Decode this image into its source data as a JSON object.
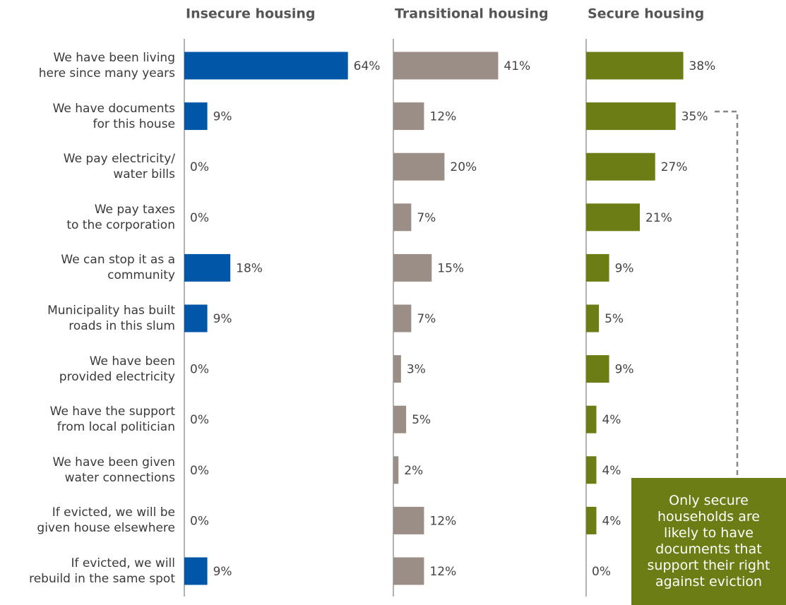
{
  "chart_data": {
    "type": "bar",
    "orientation": "horizontal",
    "categories": [
      "We have been living\nhere since many years",
      "We have documents\nfor this house",
      "We pay electricity/\nwater bills",
      "We pay taxes\nto the corporation",
      "We can stop it as a\ncommunity",
      "Municipality has built\nroads in this slum",
      "We have been\nprovided electricity",
      "We have the support\nfrom local politician",
      "We have been given\nwater connections",
      "If evicted, we will be\ngiven house elsewhere",
      "If evicted, we will\nrebuild in the same spot"
    ],
    "series": [
      {
        "name": "Insecure housing",
        "color": "#0057a8",
        "values": [
          64,
          9,
          0,
          0,
          18,
          9,
          0,
          0,
          0,
          0,
          9
        ],
        "value_labels": [
          "64%",
          "9%",
          "0%",
          "0%",
          "18%",
          "9%",
          "0%",
          "0%",
          "0%",
          "0%",
          "9%"
        ]
      },
      {
        "name": "Transitional housing",
        "color": "#9b8e87",
        "values": [
          41,
          12,
          20,
          7,
          15,
          7,
          3,
          5,
          2,
          12,
          12
        ],
        "value_labels": [
          "41%",
          "12%",
          "20%",
          "7%",
          "15%",
          "7%",
          "3%",
          "5%",
          "2%",
          "12%",
          "12%"
        ]
      },
      {
        "name": "Secure housing",
        "color": "#6b7d14",
        "values": [
          38,
          35,
          27,
          21,
          9,
          5,
          9,
          4,
          4,
          4,
          0
        ],
        "value_labels": [
          "38%",
          "35%",
          "27%",
          "21%",
          "9%",
          "5%",
          "9%",
          "4%",
          "4%",
          "4%",
          "0%"
        ]
      }
    ],
    "annotation": "Only secure\nhouseholds are\nlikely to have\ndocuments that\nsupport their right\nagainst eviction"
  }
}
